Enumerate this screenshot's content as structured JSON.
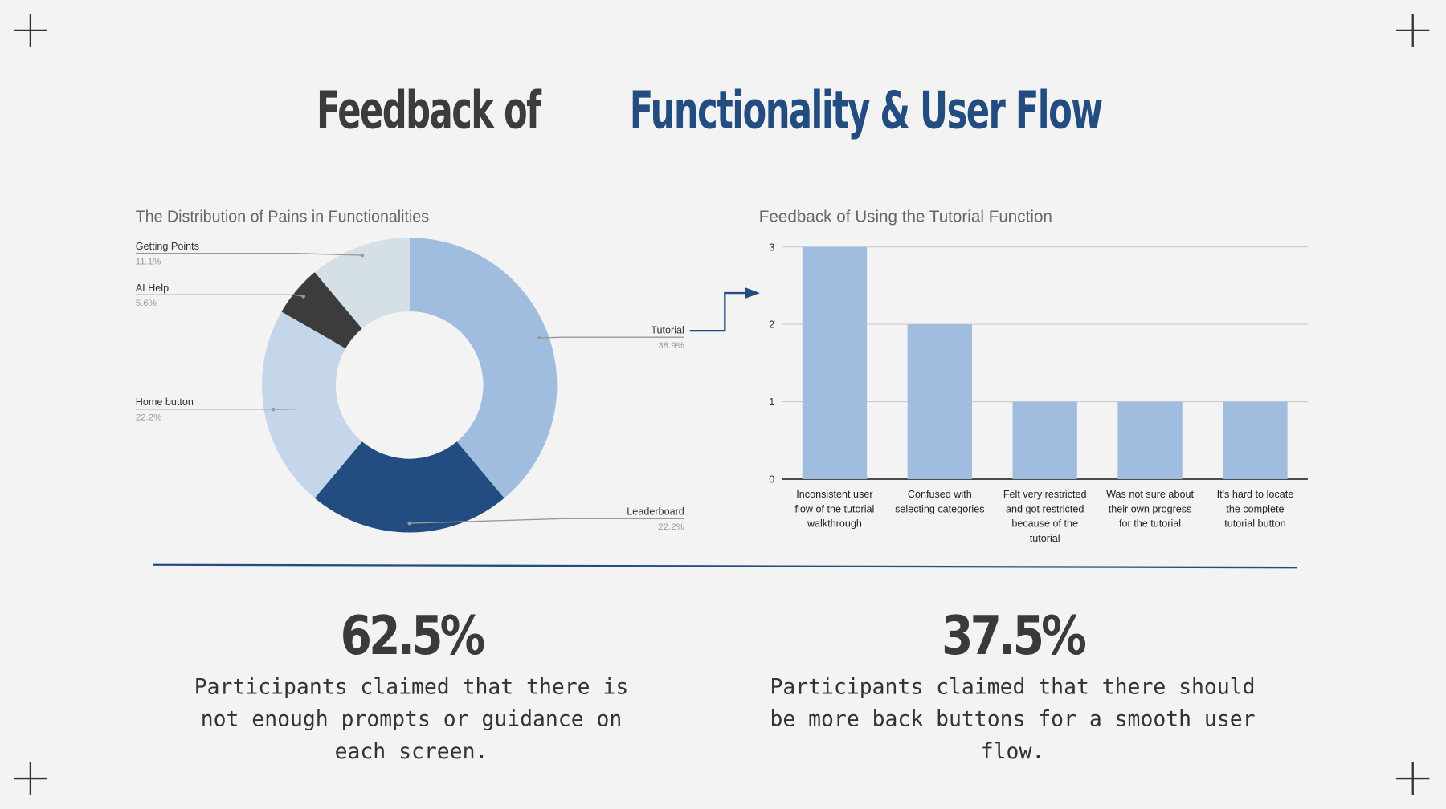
{
  "title": [
    "Feedback of",
    "Functionality & User Flow"
  ],
  "chart_data": [
    {
      "type": "pie",
      "title": "The Distribution of Pains in Functionalities",
      "categories": [
        "Tutorial",
        "Leaderboard",
        "Home button",
        "AI Help",
        "Getting Points"
      ],
      "values": [
        38.9,
        22.2,
        22.2,
        5.6,
        11.1
      ],
      "value_labels": [
        "38.9%",
        "22.2%",
        "22.2%",
        "5.6%",
        "11.1%"
      ],
      "colors": [
        "#a0bddf",
        "#234d80",
        "#c5d5ea",
        "#3c3c3c",
        "#d5e0e6"
      ],
      "donut": true
    },
    {
      "type": "bar",
      "title": "Feedback of Using the Tutorial Function",
      "categories": [
        "Inconsistent user flow of the tutorial walkthrough",
        "Confused with selecting categories",
        "Felt very restricted and got restricted because of the tutorial",
        "Was not sure about their own progress for the tutorial",
        "It's hard to locate the complete tutorial button"
      ],
      "values": [
        3,
        2,
        1,
        1,
        1
      ],
      "color": "#a0bddf",
      "ylim": [
        0,
        3
      ],
      "yticks": [
        0,
        1,
        2,
        3
      ],
      "grid": true
    }
  ],
  "stats": [
    {
      "value": "62.5%",
      "text": "Participants claimed that there is not enough prompts or guidance on each screen."
    },
    {
      "value": "37.5%",
      "text": "Participants claimed that there should be more back buttons for a smooth user flow."
    }
  ]
}
